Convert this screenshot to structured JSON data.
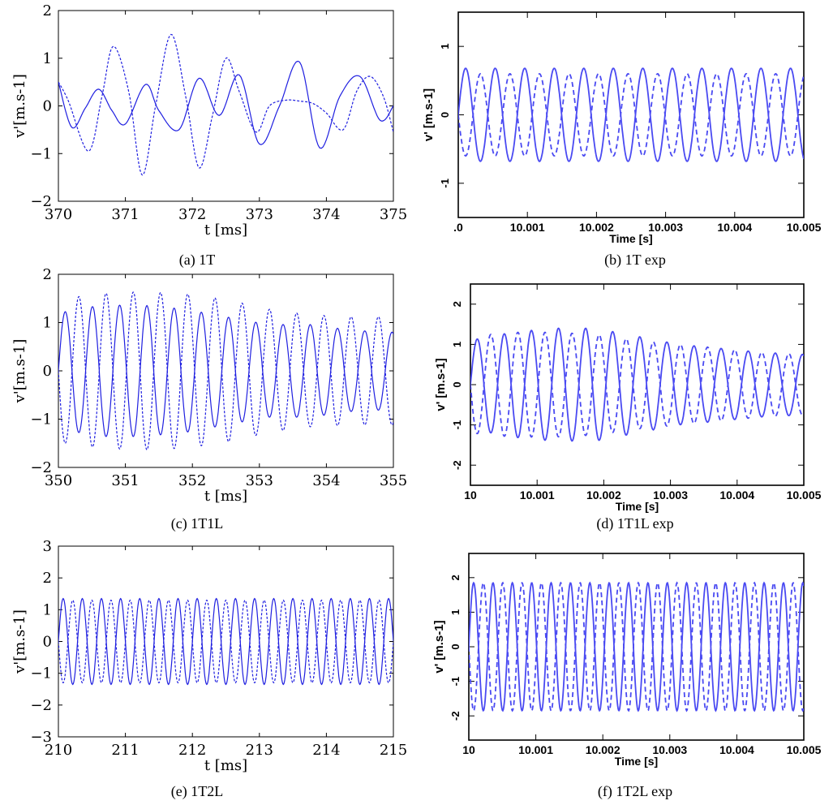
{
  "chart_data": [
    {
      "id": "a",
      "type": "line",
      "style": "sim",
      "caption": "(a) 1T",
      "xlabel": "t [ms]",
      "ylabel": "v'[m.s-1]",
      "xlim": [
        370,
        375
      ],
      "ylim": [
        -2,
        2
      ],
      "xticks": [
        "370",
        "371",
        "372",
        "373",
        "374",
        "375"
      ],
      "yticks": [
        "−2",
        "−1",
        "0",
        "1",
        "2"
      ],
      "series": [
        {
          "dash": false,
          "x": [
            370.0,
            370.2,
            370.4,
            370.6,
            370.8,
            371.0,
            371.3,
            371.5,
            371.8,
            372.1,
            372.4,
            372.7,
            373.0,
            373.3,
            373.6,
            373.9,
            374.2,
            374.5,
            374.8,
            375.0
          ],
          "y": [
            0.5,
            -0.45,
            -0.05,
            0.35,
            -0.1,
            -0.38,
            0.45,
            -0.1,
            -0.5,
            0.58,
            -0.2,
            0.65,
            -0.8,
            0.0,
            0.92,
            -0.88,
            0.2,
            0.62,
            -0.3,
            0.0
          ]
        },
        {
          "dash": true,
          "x": [
            370.0,
            370.15,
            370.45,
            370.65,
            370.82,
            371.05,
            371.25,
            371.45,
            371.68,
            371.9,
            372.1,
            372.3,
            372.5,
            372.7,
            372.95,
            373.15,
            373.4,
            373.6,
            373.8,
            374.0,
            374.25,
            374.45,
            374.65,
            374.85,
            375.0
          ],
          "y": [
            0.5,
            0.1,
            -0.95,
            0.2,
            1.25,
            0.3,
            -1.45,
            0.0,
            1.5,
            0.2,
            -1.3,
            -0.2,
            1.0,
            0.3,
            -0.55,
            0.0,
            0.12,
            0.1,
            0.05,
            -0.15,
            -0.5,
            0.3,
            0.62,
            0.2,
            -0.55
          ]
        }
      ]
    },
    {
      "id": "b",
      "type": "line",
      "style": "exp",
      "caption": "(b) 1T exp",
      "xlabel": "Time [s]",
      "ylabel": "v' [m.s-1]",
      "xlim": [
        0,
        0.005
      ],
      "ylim": [
        -1.5,
        1.5
      ],
      "xticks": [
        ".0",
        "10.001",
        "10.002",
        "10.003",
        "10.004",
        "10.005"
      ],
      "yticks": [
        "-1",
        "0",
        "1"
      ],
      "oscillation": {
        "cycles": 11.7,
        "amp_solid": 0.68,
        "amp_dash": 0.6
      }
    },
    {
      "id": "c",
      "type": "line",
      "style": "sim",
      "caption": "(c) 1T1L",
      "xlabel": "t [ms]",
      "ylabel": "v'[m.s-1]",
      "xlim": [
        350,
        355
      ],
      "ylim": [
        -2.5,
        2.5
      ],
      "xticks": [
        "350",
        "351",
        "352",
        "353",
        "354",
        "355"
      ],
      "yticks": [
        "−2",
        "−1",
        "0",
        "1",
        "2"
      ],
      "oscillation": {
        "cycles": 12.3,
        "amp_solid": [
          1.5,
          1.7,
          1.7,
          1.6,
          1.4,
          1.2,
          1.2,
          1.05,
          1.0
        ],
        "amp_dash": [
          1.85,
          2.0,
          2.05,
          2.0,
          1.85,
          1.6,
          1.45,
          1.4,
          1.4
        ]
      }
    },
    {
      "id": "d",
      "type": "line",
      "style": "exp",
      "caption": "(d) 1T1L exp",
      "xlabel": "Time [s]",
      "ylabel": "v' [m.s-1]",
      "xlim": [
        0,
        0.005
      ],
      "ylim": [
        -2.5,
        2.5
      ],
      "xticks": [
        "10",
        "10.001",
        "10.002",
        "10.003",
        "10.004",
        "10.005"
      ],
      "yticks": [
        "-2",
        "-1",
        "0",
        "1",
        "2"
      ],
      "oscillation": {
        "cycles": 12.3,
        "amp_solid": [
          1.1,
          1.3,
          1.4,
          1.4,
          1.2,
          1.0,
          0.9,
          0.8,
          0.75
        ],
        "amp_dash": [
          1.2,
          1.3,
          1.3,
          1.25,
          1.1,
          1.0,
          0.9,
          0.8,
          0.75
        ]
      }
    },
    {
      "id": "e",
      "type": "line",
      "style": "sim",
      "caption": "(e) 1T2L",
      "xlabel": "t [ms]",
      "ylabel": "v'[m.s-1]",
      "xlim": [
        210,
        215
      ],
      "ylim": [
        -3,
        3
      ],
      "xticks": [
        "210",
        "211",
        "212",
        "213",
        "214",
        "215"
      ],
      "yticks": [
        "−3",
        "−2",
        "−1",
        "0",
        "1",
        "2",
        "3"
      ],
      "oscillation": {
        "cycles": 17.5,
        "amp_solid": 1.35,
        "amp_dash": 1.3
      }
    },
    {
      "id": "f",
      "type": "line",
      "style": "exp",
      "caption": "(f) 1T2L exp",
      "xlabel": "Time [s]",
      "ylabel": "v' [m.s-1]",
      "xlim": [
        0,
        0.005
      ],
      "ylim": [
        -2.7,
        2.7
      ],
      "xticks": [
        "10",
        "10.001",
        "10.002",
        "10.003",
        "10.004",
        "10.005"
      ],
      "yticks": [
        "-2",
        "-1",
        "0",
        "1",
        "2"
      ],
      "oscillation": {
        "cycles": 17.3,
        "amp_solid": 1.85,
        "amp_dash": 1.85
      }
    }
  ],
  "colors": {
    "line": "#1f1fe0",
    "exp_line": "#4a4af2",
    "axis": "#000000"
  }
}
